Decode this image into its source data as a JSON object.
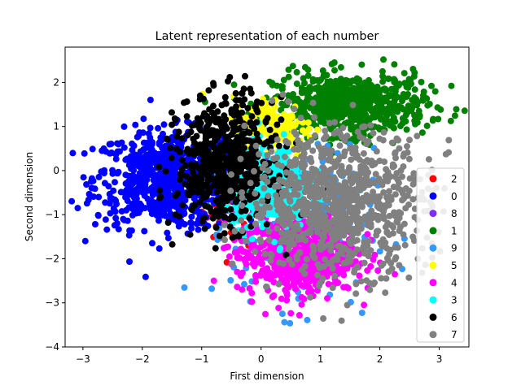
{
  "chart_data": {
    "type": "scatter",
    "title": "Latent representation of each number",
    "xlabel": "First dimension",
    "ylabel": "Second dimension",
    "xlim": [
      -3.3,
      3.5
    ],
    "ylim": [
      -4.0,
      2.8
    ],
    "x_ticks": [
      -3,
      -2,
      -1,
      0,
      1,
      2,
      3
    ],
    "y_ticks": [
      -4,
      -3,
      -2,
      -1,
      0,
      1,
      2
    ],
    "grid": false,
    "legend_position": "lower-right",
    "series": [
      {
        "name": "2",
        "color": "#ff0000",
        "cluster": {
          "cx": -0.5,
          "cy": -0.9,
          "sx": 0.25,
          "sy": 0.45,
          "n": 40
        }
      },
      {
        "name": "0",
        "color": "#0000ff",
        "cluster": {
          "cx": -1.6,
          "cy": -0.2,
          "sx": 0.6,
          "sy": 0.55,
          "n": 750
        }
      },
      {
        "name": "8",
        "color": "#7f2ff0",
        "cluster": {
          "cx": -0.1,
          "cy": -0.3,
          "sx": 0.3,
          "sy": 0.4,
          "n": 30
        }
      },
      {
        "name": "1",
        "color": "#008000",
        "cluster": {
          "cx": 1.5,
          "cy": 1.5,
          "sx": 0.65,
          "sy": 0.35,
          "n": 650
        }
      },
      {
        "name": "9",
        "color": "#3399ff",
        "cluster": {
          "cx": 0.7,
          "cy": -1.3,
          "sx": 0.6,
          "sy": 0.9,
          "n": 220
        }
      },
      {
        "name": "5",
        "color": "#ffff00",
        "cluster": {
          "cx": 0.2,
          "cy": 1.0,
          "sx": 0.35,
          "sy": 0.35,
          "n": 160
        }
      },
      {
        "name": "4",
        "color": "#ff00ff",
        "cluster": {
          "cx": 0.6,
          "cy": -1.9,
          "sx": 0.5,
          "sy": 0.45,
          "n": 650
        }
      },
      {
        "name": "3",
        "color": "#00ffff",
        "cluster": {
          "cx": 0.1,
          "cy": -0.4,
          "sx": 0.35,
          "sy": 0.45,
          "n": 450
        }
      },
      {
        "name": "6",
        "color": "#000000",
        "cluster": {
          "cx": -0.6,
          "cy": 0.2,
          "sx": 0.4,
          "sy": 0.7,
          "n": 650
        }
      },
      {
        "name": "7",
        "color": "#808080",
        "cluster": {
          "cx": 1.3,
          "cy": -0.7,
          "sx": 0.75,
          "sy": 0.8,
          "n": 900
        }
      }
    ]
  }
}
